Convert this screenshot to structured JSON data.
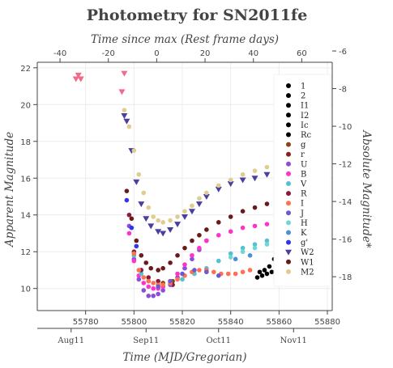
{
  "chart_data": {
    "type": "scatter",
    "title": "Photometry for SN2011fe",
    "xlabel": "Time (MJD/Gregorian)",
    "x2label": "Time since max (Rest frame days)",
    "ylabel": "Apparent Magnitude",
    "y2label": "Absolute Magnitude*",
    "xlim": [
      55760,
      55882
    ],
    "x2lim": [
      -49.4,
      72.6
    ],
    "ylim": [
      22.3,
      8.8
    ],
    "y2lim": [
      -6.6,
      -19.8
    ],
    "y_inverted": true,
    "grid": true,
    "legend_position": "right",
    "x_ticks": [
      55780,
      55800,
      55820,
      55840,
      55860,
      55880
    ],
    "x_tick_labels": [
      "55780",
      "55800",
      "55820",
      "55840",
      "55860",
      "55880"
    ],
    "x_date_ticks": [
      55774,
      55805,
      55835,
      55866
    ],
    "x_date_labels": [
      "Aug11",
      "Sep11",
      "Oct11",
      "Nov11"
    ],
    "x2_ticks": [
      -40,
      -20,
      0,
      20,
      40,
      60
    ],
    "x2_tick_labels": [
      "-40",
      "-20",
      "0",
      "20",
      "40",
      "60"
    ],
    "y_ticks": [
      10,
      12,
      14,
      16,
      18,
      20,
      22
    ],
    "y_tick_labels": [
      "10",
      "12",
      "14",
      "16",
      "18",
      "20",
      "22"
    ],
    "y2_ticks": [
      -18,
      -16,
      -14,
      -12,
      -10,
      -8,
      -6
    ],
    "y2_tick_labels": [
      "-18",
      "-16",
      "-14",
      "-12",
      "-10",
      "-8",
      "-6"
    ],
    "series": [
      {
        "name": "1",
        "color": "#000000",
        "marker": "circle",
        "points": [
          [
            55851,
            10.6
          ],
          [
            55853,
            10.7
          ],
          [
            55855,
            10.8
          ],
          [
            55857,
            10.9
          ],
          [
            55859,
            11.0
          ]
        ]
      },
      {
        "name": "2",
        "color": "#000000",
        "marker": "circle",
        "points": [
          [
            55852,
            10.9
          ],
          [
            55854,
            11.0
          ],
          [
            55856,
            11.2
          ]
        ]
      },
      {
        "name": "I1",
        "color": "#000000",
        "marker": "circle",
        "points": [
          [
            55879,
            12.6
          ]
        ]
      },
      {
        "name": "I2",
        "color": "#000000",
        "marker": "circle",
        "points": [
          [
            55880,
            12.7
          ]
        ]
      },
      {
        "name": "Ic",
        "color": "#000000",
        "marker": "circle",
        "points": [
          [
            55858,
            11.6
          ]
        ]
      },
      {
        "name": "Rc",
        "color": "#000000",
        "marker": "circle",
        "points": [
          [
            55860,
            11.8
          ]
        ]
      },
      {
        "name": "g",
        "color": "#8b4513",
        "marker": "circle",
        "points": [
          [
            55812,
            10.3
          ],
          [
            55816,
            10.4
          ]
        ]
      },
      {
        "name": "r",
        "color": "#8b2020",
        "marker": "circle",
        "points": [
          [
            55812,
            10.1
          ],
          [
            55816,
            10.2
          ]
        ]
      },
      {
        "name": "U",
        "color": "#8a4fd8",
        "marker": "circle",
        "points": [
          [
            55798,
            13.4
          ],
          [
            55800,
            11.6
          ],
          [
            55802,
            10.5
          ],
          [
            55804,
            9.9
          ],
          [
            55806,
            9.6
          ],
          [
            55808,
            9.6
          ],
          [
            55810,
            9.7
          ],
          [
            55812,
            9.9
          ],
          [
            55815,
            10.2
          ],
          [
            55818,
            10.6
          ],
          [
            55821,
            11.1
          ],
          [
            55824,
            11.6
          ],
          [
            55827,
            12.1
          ],
          [
            55830,
            12.6
          ]
        ]
      },
      {
        "name": "B",
        "color": "#ff33cc",
        "marker": "circle",
        "points": [
          [
            55798,
            13.0
          ],
          [
            55800,
            11.5
          ],
          [
            55802,
            10.7
          ],
          [
            55804,
            10.3
          ],
          [
            55806,
            10.1
          ],
          [
            55808,
            10.0
          ],
          [
            55810,
            10.0
          ],
          [
            55812,
            10.1
          ],
          [
            55815,
            10.4
          ],
          [
            55818,
            10.8
          ],
          [
            55821,
            11.3
          ],
          [
            55824,
            11.8
          ],
          [
            55827,
            12.2
          ],
          [
            55830,
            12.6
          ],
          [
            55835,
            12.9
          ],
          [
            55840,
            13.1
          ],
          [
            55845,
            13.3
          ],
          [
            55850,
            13.4
          ],
          [
            55855,
            13.5
          ],
          [
            55860,
            13.6
          ],
          [
            55865,
            13.7
          ],
          [
            55870,
            13.8
          ],
          [
            55875,
            13.9
          ],
          [
            55880,
            14.0
          ]
        ]
      },
      {
        "name": "V",
        "color": "#55c0d0",
        "marker": "circle",
        "points": [
          [
            55800,
            11.8
          ],
          [
            55803,
            10.8
          ],
          [
            55806,
            10.4
          ],
          [
            55810,
            10.2
          ],
          [
            55815,
            10.3
          ],
          [
            55820,
            10.5
          ],
          [
            55825,
            10.8
          ],
          [
            55830,
            11.1
          ],
          [
            55835,
            11.5
          ],
          [
            55840,
            11.9
          ],
          [
            55845,
            12.2
          ],
          [
            55850,
            12.4
          ],
          [
            55855,
            12.6
          ],
          [
            55860,
            12.7
          ]
        ]
      },
      {
        "name": "R",
        "color": "#8b1a3a",
        "marker": "circle",
        "points": [
          [
            55798,
            14.0
          ],
          [
            55800,
            12.0
          ],
          [
            55803,
            11.0
          ],
          [
            55806,
            10.6
          ],
          [
            55810,
            10.4
          ]
        ]
      },
      {
        "name": "I",
        "color": "#ff6f50",
        "marker": "circle",
        "points": [
          [
            55800,
            11.9
          ],
          [
            55802,
            11.0
          ],
          [
            55804,
            10.6
          ],
          [
            55806,
            10.4
          ],
          [
            55808,
            10.3
          ],
          [
            55810,
            10.2
          ],
          [
            55812,
            10.2
          ],
          [
            55815,
            10.3
          ],
          [
            55818,
            10.5
          ],
          [
            55821,
            10.7
          ],
          [
            55824,
            10.9
          ],
          [
            55827,
            11.0
          ],
          [
            55830,
            11.0
          ],
          [
            55833,
            10.9
          ],
          [
            55836,
            10.8
          ],
          [
            55839,
            10.8
          ],
          [
            55842,
            10.8
          ],
          [
            55845,
            10.9
          ],
          [
            55848,
            11.0
          ]
        ]
      },
      {
        "name": "J",
        "color": "#6a5acd",
        "marker": "circle",
        "points": [
          [
            55810,
            10.1
          ],
          [
            55815,
            10.4
          ],
          [
            55820,
            10.8
          ],
          [
            55825,
            11.0
          ],
          [
            55830,
            10.9
          ],
          [
            55835,
            10.7
          ]
        ]
      },
      {
        "name": "H",
        "color": "#6fd6d6",
        "marker": "circle",
        "points": [
          [
            55840,
            11.7
          ],
          [
            55845,
            12.0
          ],
          [
            55850,
            12.2
          ],
          [
            55855,
            12.4
          ]
        ]
      },
      {
        "name": "K",
        "color": "#4a90d9",
        "marker": "circle",
        "points": [
          [
            55842,
            11.6
          ],
          [
            55848,
            11.8
          ]
        ]
      },
      {
        "name": "g'",
        "color": "#3333ee",
        "marker": "circle",
        "points": [
          [
            55797,
            14.8
          ],
          [
            55799,
            13.3
          ],
          [
            55801,
            12.3
          ]
        ]
      },
      {
        "name": "W2",
        "color": "#4a3f9f",
        "marker": "triangle",
        "points": [
          [
            55796,
            19.4
          ],
          [
            55797,
            19.1
          ],
          [
            55799,
            17.5
          ],
          [
            55801,
            15.8
          ],
          [
            55803,
            14.6
          ],
          [
            55805,
            13.8
          ],
          [
            55807,
            13.4
          ],
          [
            55810,
            13.1
          ],
          [
            55812,
            13.0
          ],
          [
            55815,
            13.2
          ],
          [
            55818,
            13.5
          ],
          [
            55821,
            13.9
          ],
          [
            55824,
            14.2
          ],
          [
            55827,
            14.6
          ],
          [
            55830,
            15.0
          ],
          [
            55835,
            15.4
          ],
          [
            55840,
            15.7
          ],
          [
            55845,
            15.9
          ],
          [
            55850,
            16.0
          ],
          [
            55855,
            16.2
          ],
          [
            55860,
            16.3
          ],
          [
            55865,
            16.4
          ],
          [
            55870,
            16.5
          ],
          [
            55875,
            16.6
          ],
          [
            55880,
            16.7
          ]
        ]
      },
      {
        "name": "W1",
        "color": "#6b1a1a",
        "marker": "circle",
        "points": [
          [
            55797,
            15.3
          ],
          [
            55799,
            13.8
          ],
          [
            55801,
            12.6
          ],
          [
            55803,
            11.8
          ],
          [
            55805,
            11.4
          ],
          [
            55807,
            11.1
          ],
          [
            55810,
            11.0
          ],
          [
            55812,
            11.1
          ],
          [
            55815,
            11.4
          ],
          [
            55818,
            11.8
          ],
          [
            55821,
            12.2
          ],
          [
            55824,
            12.6
          ],
          [
            55827,
            12.9
          ],
          [
            55830,
            13.2
          ],
          [
            55835,
            13.6
          ],
          [
            55840,
            13.9
          ],
          [
            55845,
            14.2
          ],
          [
            55850,
            14.4
          ],
          [
            55855,
            14.6
          ],
          [
            55860,
            14.8
          ],
          [
            55865,
            15.0
          ],
          [
            55870,
            15.2
          ],
          [
            55875,
            15.4
          ],
          [
            55880,
            15.5
          ]
        ]
      },
      {
        "name": "M2",
        "color": "#e0cc90",
        "marker": "circle",
        "points": [
          [
            55796,
            19.7
          ],
          [
            55798,
            18.8
          ],
          [
            55800,
            17.5
          ],
          [
            55802,
            16.2
          ],
          [
            55804,
            15.2
          ],
          [
            55806,
            14.4
          ],
          [
            55808,
            13.9
          ],
          [
            55810,
            13.7
          ],
          [
            55812,
            13.6
          ],
          [
            55815,
            13.7
          ],
          [
            55818,
            13.9
          ],
          [
            55821,
            14.2
          ],
          [
            55824,
            14.5
          ],
          [
            55827,
            14.9
          ],
          [
            55830,
            15.2
          ],
          [
            55835,
            15.6
          ],
          [
            55840,
            15.9
          ],
          [
            55845,
            16.2
          ],
          [
            55850,
            16.4
          ],
          [
            55855,
            16.6
          ],
          [
            55860,
            16.8
          ]
        ]
      },
      {
        "name": "",
        "color": "#f06a8a",
        "marker": "triangle",
        "points": [
          [
            55776,
            21.4
          ],
          [
            55777,
            21.6
          ],
          [
            55778,
            21.4
          ],
          [
            55795,
            20.7
          ],
          [
            55796,
            21.7
          ]
        ]
      }
    ]
  }
}
